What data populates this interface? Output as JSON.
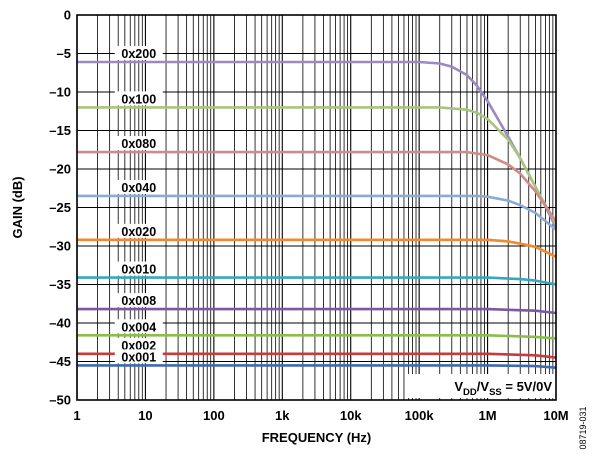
{
  "figure_id": "08719-031",
  "chart_data": {
    "type": "line",
    "title": "",
    "xlabel": "FREQUENCY (Hz)",
    "ylabel": "GAIN (dB)",
    "xscale": "log",
    "xlim": [
      1,
      10000000
    ],
    "ylim": [
      -50,
      0
    ],
    "grid": true,
    "x_ticks": [
      {
        "value": 1,
        "label": "1"
      },
      {
        "value": 10,
        "label": "10"
      },
      {
        "value": 100,
        "label": "100"
      },
      {
        "value": 1000,
        "label": "1k"
      },
      {
        "value": 10000,
        "label": "10k"
      },
      {
        "value": 100000,
        "label": "100k"
      },
      {
        "value": 1000000,
        "label": "1M"
      },
      {
        "value": 10000000,
        "label": "10M"
      }
    ],
    "y_ticks": [
      {
        "value": 0,
        "label": "0"
      },
      {
        "value": -5,
        "label": "–5"
      },
      {
        "value": -10,
        "label": "–10"
      },
      {
        "value": -15,
        "label": "–15"
      },
      {
        "value": -20,
        "label": "–20"
      },
      {
        "value": -25,
        "label": "–25"
      },
      {
        "value": -30,
        "label": "–30"
      },
      {
        "value": -35,
        "label": "–35"
      },
      {
        "value": -40,
        "label": "–40"
      },
      {
        "value": -45,
        "label": "–45"
      },
      {
        "value": -50,
        "label": "–50"
      }
    ],
    "annotation": {
      "main": "V",
      "sub1": "DD",
      "mid": "/V",
      "sub2": "SS",
      "tail": " = 5V/0V"
    },
    "series": [
      {
        "name": "0x200",
        "color": "#9b89c4",
        "x": [
          1,
          100000,
          200000,
          300000,
          500000,
          700000,
          1000000,
          2000000,
          3000000,
          5000000,
          10000000
        ],
        "y": [
          -6.1,
          -6.1,
          -6.3,
          -6.7,
          -7.8,
          -9.2,
          -11.2,
          -15.8,
          -18.6,
          -22.3,
          -27.6
        ]
      },
      {
        "name": "0x100",
        "color": "#a9c47f",
        "x": [
          1,
          200000,
          500000,
          700000,
          1000000,
          2000000,
          3000000,
          5000000,
          10000000
        ],
        "y": [
          -12.0,
          -12.0,
          -12.3,
          -12.7,
          -13.5,
          -16.2,
          -18.6,
          -22.3,
          -27.2
        ]
      },
      {
        "name": "0x080",
        "color": "#d08a8a",
        "x": [
          1,
          500000,
          1000000,
          2000000,
          3000000,
          5000000,
          10000000
        ],
        "y": [
          -17.8,
          -17.8,
          -18.2,
          -19.4,
          -20.6,
          -22.9,
          -26.8
        ]
      },
      {
        "name": "0x040",
        "color": "#8aaad8",
        "x": [
          1,
          700000,
          1000000,
          2000000,
          3000000,
          5000000,
          10000000
        ],
        "y": [
          -23.5,
          -23.5,
          -23.6,
          -24.1,
          -24.7,
          -25.7,
          -27.9
        ]
      },
      {
        "name": "0x020",
        "color": "#f08a2a",
        "x": [
          1,
          1000000,
          2000000,
          3000000,
          5000000,
          10000000
        ],
        "y": [
          -29.2,
          -29.2,
          -29.4,
          -29.7,
          -30.1,
          -31.4
        ]
      },
      {
        "name": "0x010",
        "color": "#35a8c0",
        "x": [
          1,
          1000000,
          3000000,
          5000000,
          10000000
        ],
        "y": [
          -34.1,
          -34.1,
          -34.3,
          -34.5,
          -35.0
        ]
      },
      {
        "name": "0x008",
        "color": "#7e56a4",
        "x": [
          1,
          1000000,
          5000000,
          10000000
        ],
        "y": [
          -38.2,
          -38.2,
          -38.4,
          -38.7
        ]
      },
      {
        "name": "0x004",
        "color": "#8bbd4a",
        "x": [
          1,
          1000000,
          5000000,
          10000000
        ],
        "y": [
          -41.6,
          -41.6,
          -41.8,
          -42.0
        ]
      },
      {
        "name": "0x002",
        "color": "#c73b3b",
        "x": [
          1,
          1000000,
          5000000,
          10000000
        ],
        "y": [
          -44.0,
          -44.0,
          -44.2,
          -44.5
        ]
      },
      {
        "name": "0x001",
        "color": "#3f6ab0",
        "x": [
          1,
          1000000,
          5000000,
          10000000
        ],
        "y": [
          -45.5,
          -45.5,
          -45.6,
          -45.8
        ]
      }
    ]
  }
}
